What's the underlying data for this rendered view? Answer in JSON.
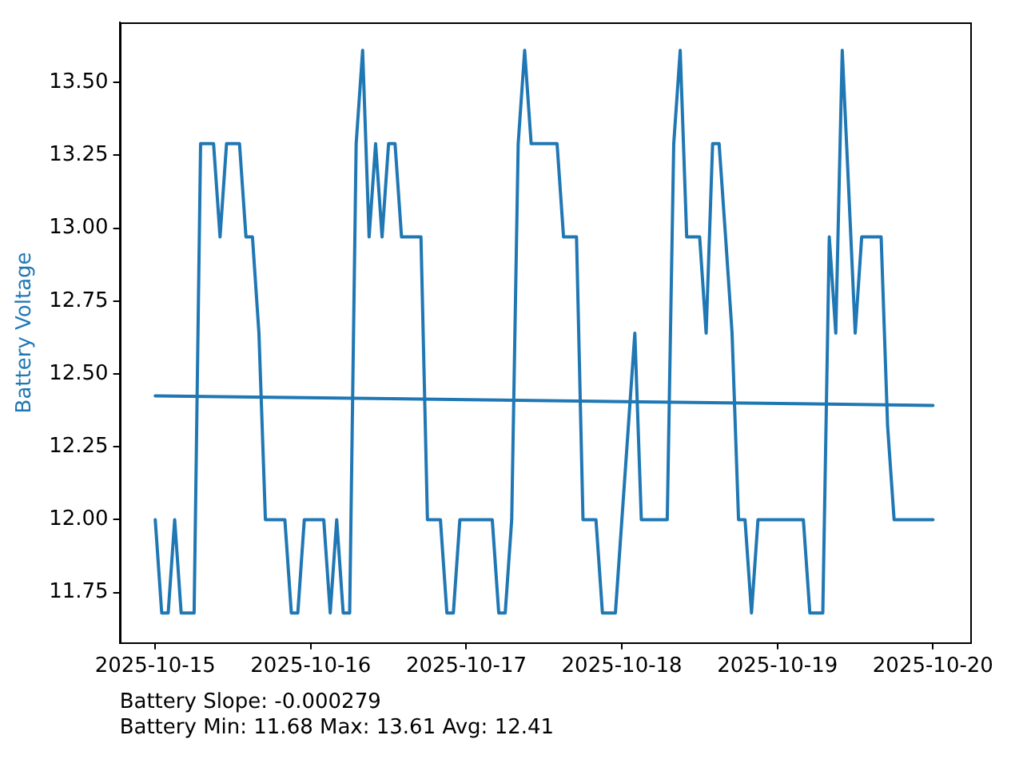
{
  "chart_data": {
    "type": "line",
    "ylabel": "Battery Voltage",
    "xlim": [
      "2025-10-14T18:30",
      "2025-10-20T05:45"
    ],
    "xticks": [
      "2025-10-15",
      "2025-10-16",
      "2025-10-17",
      "2025-10-18",
      "2025-10-19",
      "2025-10-20"
    ],
    "ylim": [
      11.577,
      13.706
    ],
    "yticks": [
      {
        "value": 11.75,
        "label": "11.75"
      },
      {
        "value": 12,
        "label": "12.00"
      },
      {
        "value": 12.25,
        "label": "12.25"
      },
      {
        "value": 12.5,
        "label": "12.50"
      },
      {
        "value": 12.75,
        "label": "12.75"
      },
      {
        "value": 13,
        "label": "13.00"
      },
      {
        "value": 13.25,
        "label": "13.25"
      },
      {
        "value": 13.5,
        "label": "13.50"
      }
    ],
    "grid": false,
    "legend": false,
    "marker": "none",
    "line_style": "solid",
    "series": [
      {
        "color": "#1f77b4",
        "x": [
          "2025-10-15T00:00",
          "2025-10-15T01:00",
          "2025-10-15T02:00",
          "2025-10-15T03:00",
          "2025-10-15T04:00",
          "2025-10-15T05:00",
          "2025-10-15T06:00",
          "2025-10-15T07:00",
          "2025-10-15T08:00",
          "2025-10-15T09:00",
          "2025-10-15T10:00",
          "2025-10-15T11:00",
          "2025-10-15T12:00",
          "2025-10-15T13:00",
          "2025-10-15T14:00",
          "2025-10-15T15:00",
          "2025-10-15T16:00",
          "2025-10-15T17:00",
          "2025-10-15T18:00",
          "2025-10-15T19:00",
          "2025-10-15T20:00",
          "2025-10-15T21:00",
          "2025-10-15T22:00",
          "2025-10-15T23:00",
          "2025-10-16T00:00",
          "2025-10-16T01:00",
          "2025-10-16T02:00",
          "2025-10-16T03:00",
          "2025-10-16T04:00",
          "2025-10-16T05:00",
          "2025-10-16T06:00",
          "2025-10-16T07:00",
          "2025-10-16T08:00",
          "2025-10-16T09:00",
          "2025-10-16T10:00",
          "2025-10-16T11:00",
          "2025-10-16T12:00",
          "2025-10-16T13:00",
          "2025-10-16T14:00",
          "2025-10-16T15:00",
          "2025-10-16T17:00",
          "2025-10-16T18:00",
          "2025-10-16T19:00",
          "2025-10-16T20:00",
          "2025-10-16T21:00",
          "2025-10-16T22:00",
          "2025-10-16T23:00",
          "2025-10-17T00:00",
          "2025-10-17T01:00",
          "2025-10-17T02:00",
          "2025-10-17T03:00",
          "2025-10-17T04:00",
          "2025-10-17T05:00",
          "2025-10-17T06:00",
          "2025-10-17T07:00",
          "2025-10-17T08:00",
          "2025-10-17T09:00",
          "2025-10-17T10:00",
          "2025-10-17T11:00",
          "2025-10-17T12:00",
          "2025-10-17T13:00",
          "2025-10-17T14:00",
          "2025-10-17T15:00",
          "2025-10-17T16:00",
          "2025-10-17T17:00",
          "2025-10-17T18:00",
          "2025-10-17T19:00",
          "2025-10-17T20:00",
          "2025-10-17T21:00",
          "2025-10-17T22:00",
          "2025-10-17T23:00",
          "2025-10-18T00:00",
          "2025-10-18T01:00",
          "2025-10-18T02:00",
          "2025-10-18T03:00",
          "2025-10-18T04:00",
          "2025-10-18T05:00",
          "2025-10-18T06:00",
          "2025-10-18T07:00",
          "2025-10-18T08:00",
          "2025-10-18T09:00",
          "2025-10-18T10:00",
          "2025-10-18T11:00",
          "2025-10-18T12:00",
          "2025-10-18T13:00",
          "2025-10-18T14:00",
          "2025-10-18T15:00",
          "2025-10-18T16:00",
          "2025-10-18T17:00",
          "2025-10-18T18:00",
          "2025-10-18T19:00",
          "2025-10-18T20:00",
          "2025-10-18T21:00",
          "2025-10-18T22:00",
          "2025-10-18T23:00",
          "2025-10-19T00:00",
          "2025-10-19T01:00",
          "2025-10-19T02:00",
          "2025-10-19T03:00",
          "2025-10-19T04:00",
          "2025-10-19T05:00",
          "2025-10-19T06:00",
          "2025-10-19T07:00",
          "2025-10-19T08:00",
          "2025-10-19T09:00",
          "2025-10-19T10:00",
          "2025-10-19T11:00",
          "2025-10-19T12:00",
          "2025-10-19T13:00",
          "2025-10-19T14:00",
          "2025-10-19T15:00",
          "2025-10-19T16:00",
          "2025-10-19T17:00",
          "2025-10-19T18:00",
          "2025-10-19T19:00",
          "2025-10-19T20:00",
          "2025-10-19T21:00",
          "2025-10-19T22:00",
          "2025-10-19T23:00",
          "2025-10-20T00:00"
        ],
        "values": [
          12.0,
          11.68,
          11.68,
          12.0,
          11.68,
          11.68,
          11.68,
          13.29,
          13.29,
          13.29,
          12.97,
          13.29,
          13.29,
          13.29,
          12.97,
          12.97,
          12.64,
          12.0,
          12.0,
          12.0,
          12.0,
          11.68,
          11.68,
          12.0,
          12.0,
          12.0,
          12.0,
          11.68,
          12.0,
          11.68,
          11.68,
          13.29,
          13.61,
          12.97,
          13.29,
          12.97,
          13.29,
          13.29,
          12.97,
          12.97,
          12.97,
          12.0,
          12.0,
          12.0,
          11.68,
          11.68,
          12.0,
          12.0,
          12.0,
          12.0,
          12.0,
          12.0,
          11.68,
          11.68,
          12.0,
          13.29,
          13.61,
          13.29,
          13.29,
          13.29,
          13.29,
          13.29,
          12.97,
          12.97,
          12.97,
          12.0,
          12.0,
          12.0,
          11.68,
          11.68,
          11.68,
          12.0,
          12.32,
          12.64,
          12.0,
          12.0,
          12.0,
          12.0,
          12.0,
          13.29,
          13.61,
          12.97,
          12.97,
          12.97,
          12.64,
          13.29,
          13.29,
          12.97,
          12.64,
          12.0,
          12.0,
          11.68,
          12.0,
          12.0,
          12.0,
          12.0,
          12.0,
          12.0,
          12.0,
          12.0,
          11.68,
          11.68,
          11.68,
          12.97,
          12.64,
          13.61,
          13.13,
          12.64,
          12.97,
          12.97,
          12.97,
          12.97,
          12.32,
          12.0,
          12.0,
          12.0,
          12.0,
          12.0,
          12.0,
          12.0
        ]
      },
      {
        "color": "#1f77b4",
        "x": [
          "2025-10-15T00:00",
          "2025-10-20T00:00"
        ],
        "values": [
          12.425,
          12.392
        ]
      }
    ],
    "annotations": [
      "Battery Slope: -0.000279",
      "Battery Min: 11.68 Max: 13.61 Avg: 12.41"
    ]
  }
}
